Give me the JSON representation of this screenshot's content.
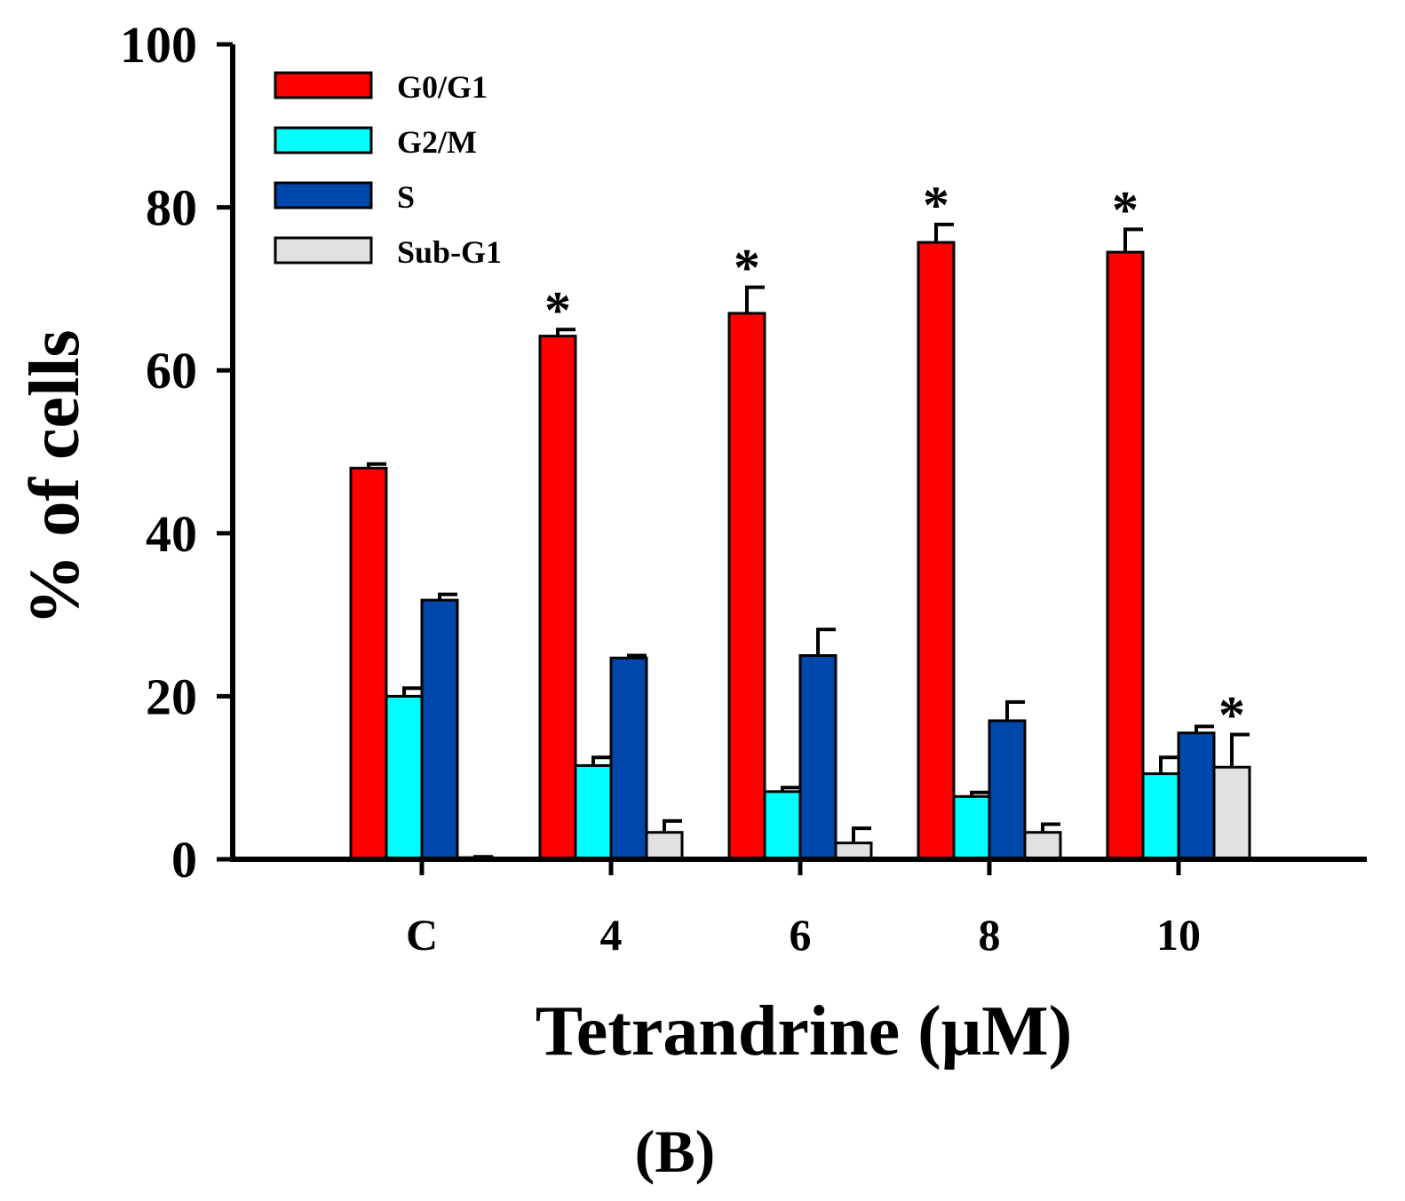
{
  "chart_data": {
    "type": "bar",
    "title": "",
    "xlabel": "Tetrandrine (μM)",
    "ylabel": "% of cells",
    "ylim": [
      0,
      100
    ],
    "yticks": [
      "0",
      "20",
      "40",
      "60",
      "80",
      "100"
    ],
    "categories": [
      "C",
      "4",
      "6",
      "8",
      "10"
    ],
    "series": [
      {
        "name": "G0/G1",
        "color": "#ff0000",
        "values": [
          48,
          64.2,
          67,
          75.7,
          74.5
        ],
        "errors": [
          0.5,
          0.8,
          3.2,
          2.2,
          2.8
        ],
        "significant": [
          false,
          true,
          true,
          true,
          true
        ]
      },
      {
        "name": "G2/M",
        "color": "#00ffff",
        "values": [
          20,
          11.5,
          8.3,
          7.7,
          10.5
        ],
        "errors": [
          1.0,
          1.0,
          0.5,
          0.5,
          2.0
        ],
        "significant": [
          false,
          false,
          false,
          false,
          false
        ]
      },
      {
        "name": "S",
        "color": "#0047ab",
        "values": [
          31.8,
          24.7,
          25,
          17,
          15.5
        ],
        "errors": [
          0.7,
          0.3,
          3.2,
          2.3,
          0.8
        ],
        "significant": [
          false,
          false,
          false,
          false,
          false
        ]
      },
      {
        "name": "Sub-G1",
        "color": "#e0e0e0",
        "values": [
          0.2,
          3.3,
          2,
          3.3,
          11.3
        ],
        "errors": [
          0.1,
          1.4,
          1.8,
          1.0,
          4.0
        ],
        "significant": [
          false,
          false,
          false,
          false,
          true
        ]
      }
    ],
    "significance_marker": "*",
    "legend_position": "top-left",
    "grid": false
  },
  "panel_label": "(B)"
}
